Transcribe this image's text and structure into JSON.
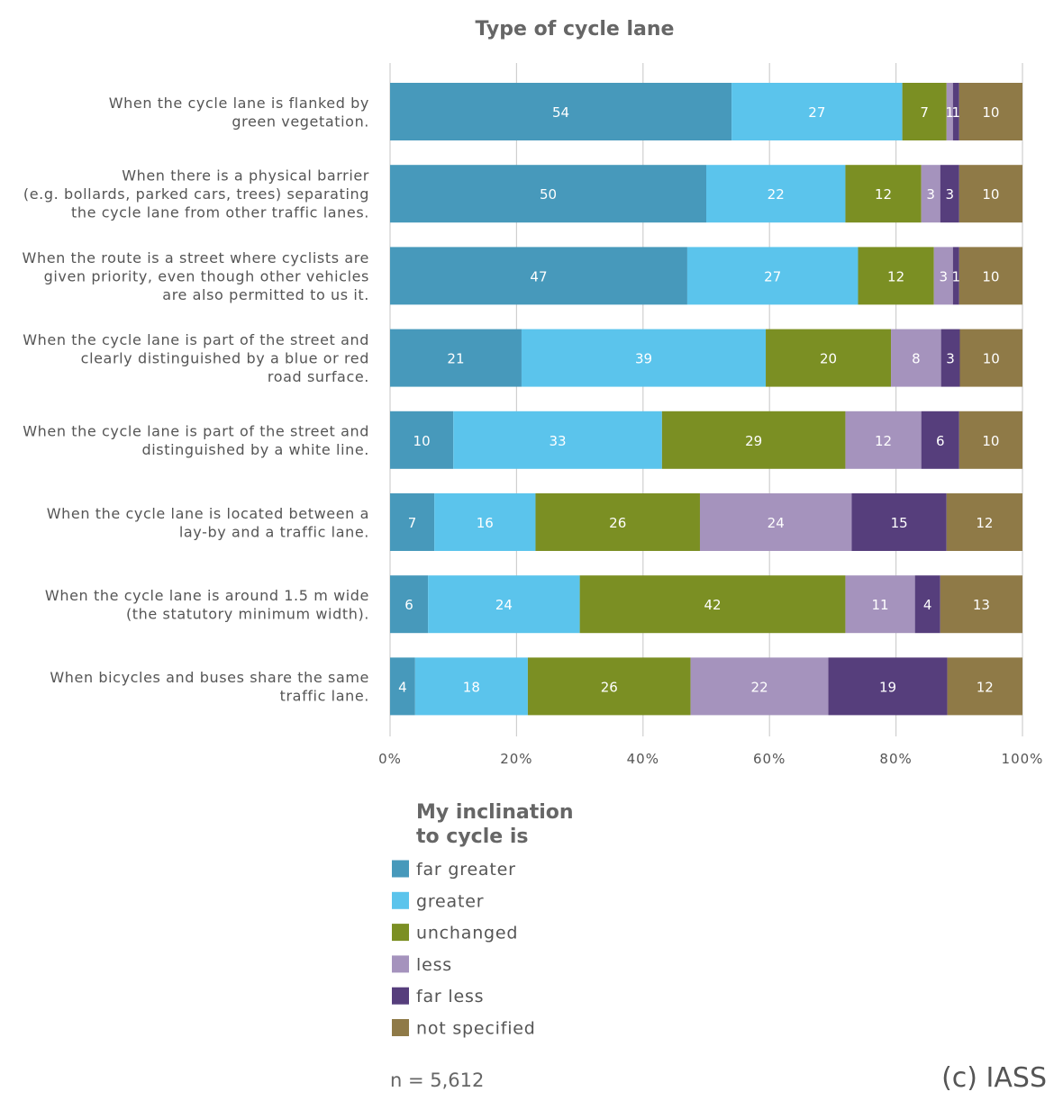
{
  "chart_data": {
    "type": "bar",
    "orientation": "horizontal",
    "stacked": true,
    "title": "Type of cycle lane",
    "categories": [
      [
        "When the cycle lane is flanked by",
        "green vegetation."
      ],
      [
        "When there is a physical barrier",
        "(e.g. bollards, parked cars, trees) separating",
        "the cycle lane from other traffic lanes."
      ],
      [
        "When the route is a street where cyclists are",
        "given priority, even though other vehicles",
        "are also permitted to us it."
      ],
      [
        "When the cycle lane is part of the street and",
        "clearly distinguished by a blue or red",
        "road surface."
      ],
      [
        "When the cycle lane is part of the street and",
        "distinguished by a white line."
      ],
      [
        "When the cycle lane is located between a",
        "lay-by and a traffic lane."
      ],
      [
        "When the cycle lane is around 1.5 m wide",
        "(the statutory minimum width)."
      ],
      [
        "When bicycles and buses share the same",
        "traffic lane."
      ]
    ],
    "series": [
      {
        "name": "far greater",
        "color": "#4799bb",
        "values": [
          54,
          50,
          47,
          21,
          10,
          7,
          6,
          4
        ]
      },
      {
        "name": "greater",
        "color": "#5bc4ec",
        "values": [
          27,
          22,
          27,
          39,
          33,
          16,
          24,
          18
        ]
      },
      {
        "name": "unchanged",
        "color": "#7b8f23",
        "values": [
          7,
          12,
          12,
          20,
          29,
          26,
          42,
          26
        ]
      },
      {
        "name": "less",
        "color": "#a593bd",
        "values": [
          1,
          3,
          3,
          8,
          12,
          24,
          11,
          22
        ]
      },
      {
        "name": "far less",
        "color": "#563e7c",
        "values": [
          1,
          3,
          1,
          3,
          6,
          15,
          4,
          19
        ]
      },
      {
        "name": "not specified",
        "color": "#8f7a47",
        "values": [
          10,
          10,
          10,
          10,
          10,
          12,
          13,
          12
        ]
      }
    ],
    "xlim": [
      0,
      100
    ],
    "xticks": [
      "0%",
      "20%",
      "40%",
      "60%",
      "80%",
      "100%"
    ],
    "grid": true,
    "legend": {
      "title": [
        "My inclination",
        "to cycle is"
      ],
      "placement": "bottom"
    }
  },
  "notes": {
    "sample_size": "n = 5,612",
    "copyright": "(c) IASS"
  }
}
